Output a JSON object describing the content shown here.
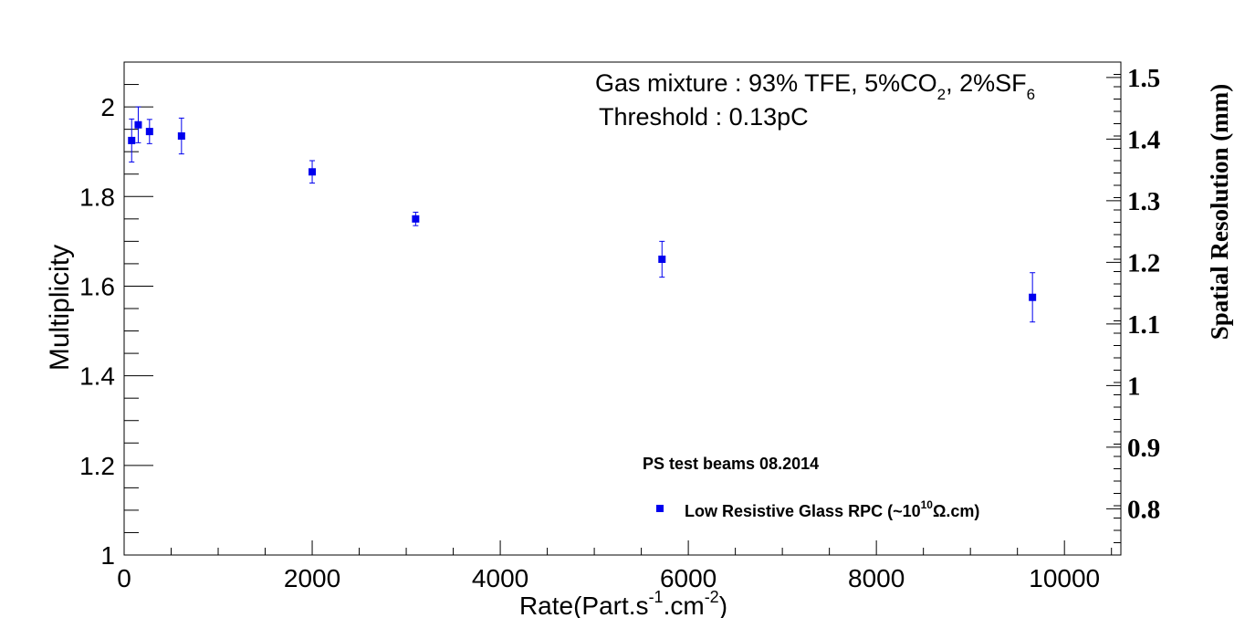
{
  "chart_data": {
    "type": "scatter",
    "xlabel": {
      "text": "Rate(Part.s",
      "sup1": "-1",
      "mid": ".cm",
      "sup2": "-2",
      "end": ")"
    },
    "ylabel": "Multiplicity",
    "y2label": "Spatial Resolution (mm)",
    "xlim": [
      0,
      10600
    ],
    "ylim": [
      1,
      2.1
    ],
    "y2lim": [
      0.725,
      1.525
    ],
    "x_ticks": [
      "0",
      "2000",
      "4000",
      "6000",
      "8000",
      "10000"
    ],
    "y_ticks": [
      "1",
      "1.2",
      "1.4",
      "1.6",
      "1.8",
      "2"
    ],
    "y2_ticks": [
      "0.8",
      "0.9",
      "1",
      "1.1",
      "1.2",
      "1.3",
      "1.4",
      "1.5"
    ],
    "grid": false,
    "legend_position": "bottom-right",
    "series": [
      {
        "name": "Low Resistive Glass RPC (~10^10 Ω.cm)",
        "color": "#0000ee",
        "marker": "square",
        "points": [
          {
            "x": 80,
            "y": 1.925,
            "err": 0.048
          },
          {
            "x": 150,
            "y": 1.96,
            "err": 0.04
          },
          {
            "x": 270,
            "y": 1.945,
            "err": 0.027
          },
          {
            "x": 610,
            "y": 1.935,
            "err": 0.04
          },
          {
            "x": 2000,
            "y": 1.855,
            "err": 0.025
          },
          {
            "x": 3100,
            "y": 1.75,
            "err": 0.015
          },
          {
            "x": 5720,
            "y": 1.66,
            "err": 0.04
          },
          {
            "x": 9660,
            "y": 1.575,
            "err": 0.055
          }
        ]
      }
    ],
    "annotations": {
      "gas_prefix": "Gas mixture : 93% TFE, 5%CO",
      "gas_sub1": "2",
      "gas_mid": ", 2%SF",
      "gas_sub2": "6",
      "threshold": "Threshold : 0.13pC",
      "beam": "PS test beams 08.2014"
    },
    "legend": {
      "label_prefix": "Low Resistive Glass RPC (~10",
      "label_sup": "10",
      "label_suffix": "Ω.cm)"
    }
  }
}
